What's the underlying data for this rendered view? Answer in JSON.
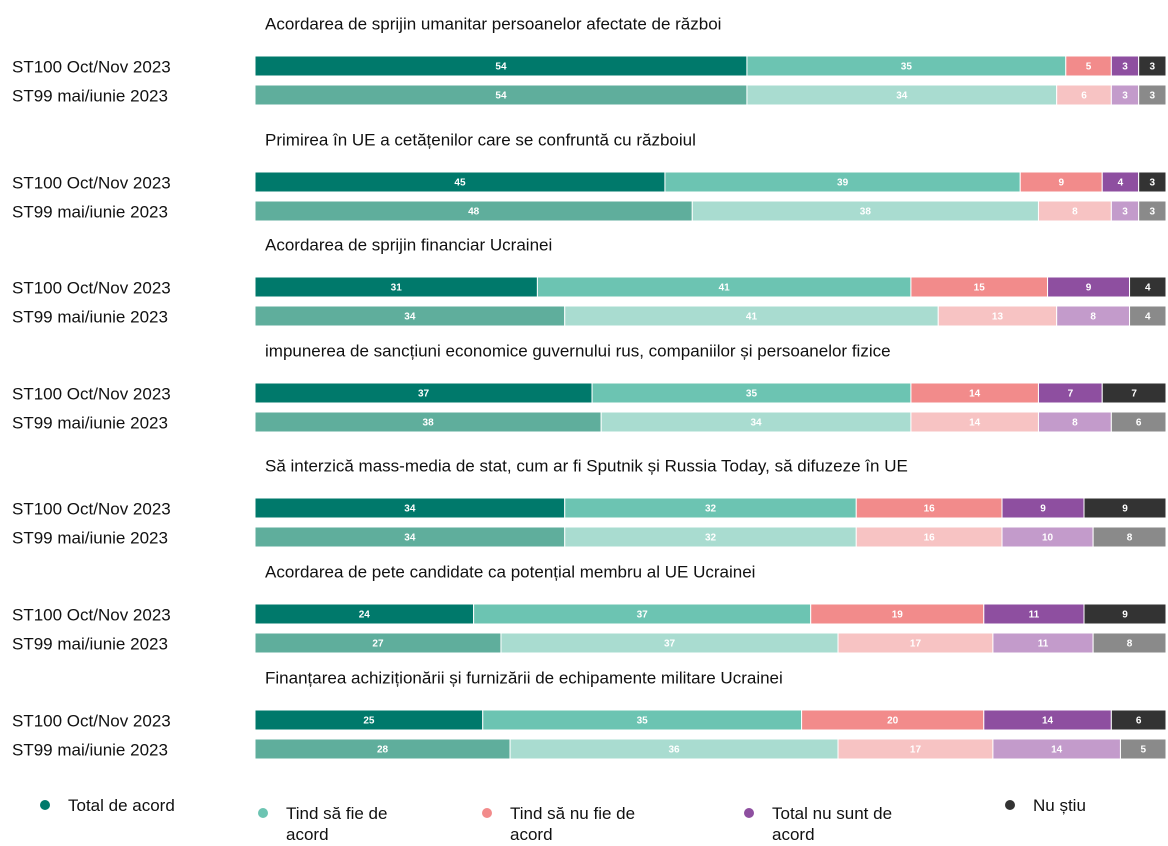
{
  "chart_data": {
    "type": "bar",
    "orientation": "horizontal",
    "stacked": true,
    "series": [
      {
        "name": "Total de acord",
        "colors": [
          "#00796b",
          "#5fae9c"
        ]
      },
      {
        "name": "Tind să fie de acord",
        "colors": [
          "#6cc4b2",
          "#a9dcd0"
        ]
      },
      {
        "name": "Tind să nu fie de acord",
        "colors": [
          "#f28b8b",
          "#f7c3c3"
        ]
      },
      {
        "name": "Total nu sunt de acord",
        "colors": [
          "#8e4fa0",
          "#c39bcb"
        ]
      },
      {
        "name": "Nu știu",
        "colors": [
          "#333333",
          "#8a8a8a"
        ]
      }
    ],
    "groups": [
      {
        "title": "Acordarea de sprijin umanitar persoanelor afectate de război",
        "categories": [
          "ST100 Oct/Nov 2023",
          "ST99 mai/iunie 2023"
        ],
        "values": [
          [
            54,
            35,
            5,
            3,
            3
          ],
          [
            54,
            34,
            6,
            3,
            3
          ]
        ]
      },
      {
        "title": "Primirea în UE a cetățenilor care se confruntă cu războiul",
        "categories": [
          "ST100 Oct/Nov 2023",
          "ST99 mai/iunie 2023"
        ],
        "values": [
          [
            45,
            39,
            9,
            4,
            3
          ],
          [
            48,
            38,
            8,
            3,
            3
          ]
        ]
      },
      {
        "title": "Acordarea de sprijin financiar Ucrainei",
        "categories": [
          "ST100 Oct/Nov 2023",
          "ST99 mai/iunie 2023"
        ],
        "values": [
          [
            31,
            41,
            15,
            9,
            4
          ],
          [
            34,
            41,
            13,
            8,
            4
          ]
        ]
      },
      {
        "title": "impunerea de sancțiuni economice guvernului rus, companiilor și persoanelor fizice",
        "categories": [
          "ST100 Oct/Nov 2023",
          "ST99 mai/iunie 2023"
        ],
        "values": [
          [
            37,
            35,
            14,
            7,
            7
          ],
          [
            38,
            34,
            14,
            8,
            6
          ]
        ]
      },
      {
        "title": "Să interzică mass-media de stat, cum ar fi Sputnik și Russia Today, să difuzeze în UE",
        "categories": [
          "ST100 Oct/Nov 2023",
          "ST99 mai/iunie 2023"
        ],
        "values": [
          [
            34,
            32,
            16,
            9,
            9
          ],
          [
            34,
            32,
            16,
            10,
            8
          ]
        ]
      },
      {
        "title": "Acordarea de pete candidate ca potențial membru al UE Ucrainei",
        "categories": [
          "ST100 Oct/Nov 2023",
          "ST99 mai/iunie 2023"
        ],
        "values": [
          [
            24,
            37,
            19,
            11,
            9
          ],
          [
            27,
            37,
            17,
            11,
            8
          ]
        ]
      },
      {
        "title": "Finanțarea achiziționării și furnizării de echipamente militare Ucrainei",
        "categories": [
          "ST100 Oct/Nov 2023",
          "ST99 mai/iunie 2023"
        ],
        "values": [
          [
            25,
            35,
            20,
            14,
            6
          ],
          [
            28,
            36,
            17,
            14,
            5
          ]
        ]
      }
    ]
  }
}
